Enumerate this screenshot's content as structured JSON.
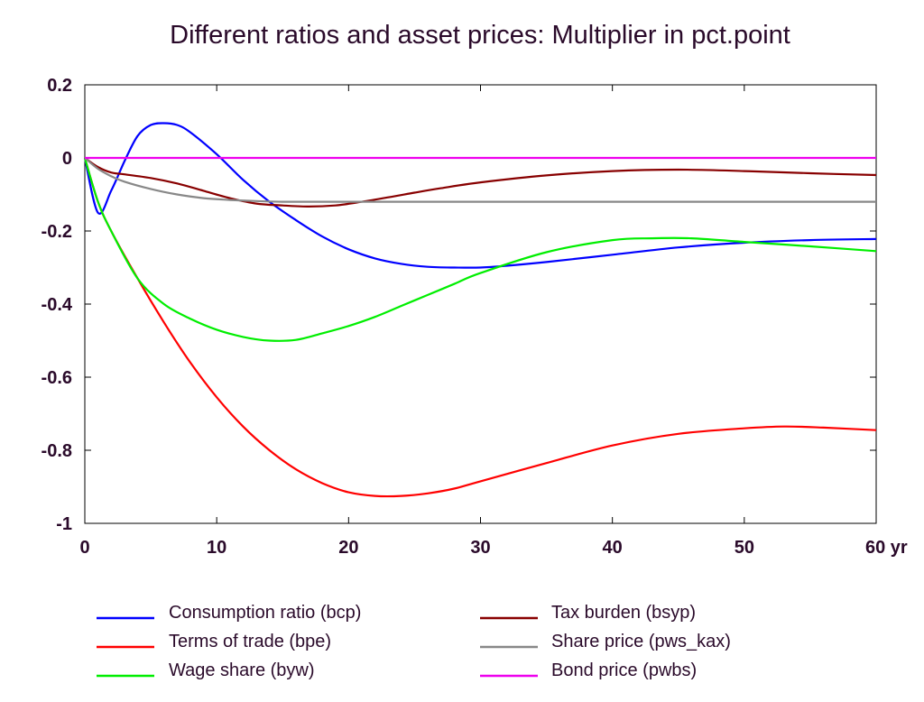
{
  "chart_data": {
    "type": "line",
    "title": "Different ratios and asset prices: Multiplier in pct.point",
    "xlabel": "",
    "ylabel": "",
    "x_unit": "yr",
    "xlim": [
      0,
      60
    ],
    "ylim": [
      -1,
      0.2
    ],
    "xticks": [
      0,
      10,
      20,
      30,
      40,
      50,
      60
    ],
    "xtick_labels": [
      "0",
      "10",
      "20",
      "30",
      "40",
      "50",
      "60 yr"
    ],
    "yticks": [
      0.2,
      0,
      -0.2,
      -0.4,
      -0.6,
      -0.8,
      -1
    ],
    "ytick_labels": [
      "0.2",
      "0",
      "-0.2",
      "-0.4",
      "-0.6",
      "-0.8",
      "-1"
    ],
    "grid": false,
    "legend_position": "bottom",
    "series": [
      {
        "name": "Consumption ratio (bcp)",
        "color": "#0000ff",
        "x": [
          0,
          1,
          2,
          3,
          4,
          5,
          6,
          7,
          8,
          10,
          12,
          14,
          16,
          18,
          20,
          22,
          24,
          26,
          28,
          30,
          32,
          35,
          40,
          45,
          50,
          55,
          60
        ],
        "values": [
          0,
          -0.15,
          -0.09,
          -0.01,
          0.06,
          0.09,
          0.095,
          0.09,
          0.07,
          0.01,
          -0.06,
          -0.12,
          -0.17,
          -0.215,
          -0.25,
          -0.275,
          -0.29,
          -0.298,
          -0.3,
          -0.3,
          -0.295,
          -0.285,
          -0.265,
          -0.245,
          -0.232,
          -0.225,
          -0.222
        ]
      },
      {
        "name": "Terms of trade (bpe)",
        "color": "#ff0000",
        "x": [
          0,
          1,
          2,
          4,
          6,
          8,
          10,
          12,
          14,
          16,
          18,
          20,
          22,
          24,
          26,
          28,
          30,
          35,
          40,
          45,
          50,
          53,
          56,
          60
        ],
        "values": [
          0,
          -0.12,
          -0.2,
          -0.33,
          -0.45,
          -0.56,
          -0.655,
          -0.735,
          -0.8,
          -0.852,
          -0.89,
          -0.915,
          -0.925,
          -0.925,
          -0.918,
          -0.905,
          -0.885,
          -0.835,
          -0.787,
          -0.755,
          -0.74,
          -0.735,
          -0.738,
          -0.745
        ]
      },
      {
        "name": "Wage share (byw)",
        "color": "#00ee00",
        "x": [
          0,
          1,
          2,
          4,
          6,
          8,
          10,
          12,
          14,
          16,
          18,
          20,
          22,
          24,
          26,
          28,
          30,
          35,
          40,
          43,
          46,
          50,
          55,
          60
        ],
        "values": [
          0,
          -0.12,
          -0.2,
          -0.33,
          -0.4,
          -0.44,
          -0.47,
          -0.49,
          -0.5,
          -0.498,
          -0.48,
          -0.46,
          -0.435,
          -0.405,
          -0.375,
          -0.345,
          -0.315,
          -0.258,
          -0.225,
          -0.22,
          -0.22,
          -0.23,
          -0.242,
          -0.255
        ]
      },
      {
        "name": "Tax burden (bsyp)",
        "color": "#880000",
        "x": [
          0,
          1,
          2,
          3,
          5,
          7,
          9,
          11,
          13,
          15,
          17,
          19,
          21,
          23,
          25,
          27,
          30,
          35,
          40,
          45,
          50,
          55,
          60
        ],
        "values": [
          0,
          -0.025,
          -0.04,
          -0.045,
          -0.055,
          -0.07,
          -0.09,
          -0.11,
          -0.125,
          -0.13,
          -0.133,
          -0.13,
          -0.12,
          -0.108,
          -0.095,
          -0.083,
          -0.067,
          -0.048,
          -0.036,
          -0.032,
          -0.036,
          -0.042,
          -0.047
        ]
      },
      {
        "name": "Share price (pws_kax)",
        "color": "#888888",
        "x": [
          0,
          1,
          2,
          3,
          5,
          7,
          9,
          11,
          13,
          15,
          17,
          20,
          25,
          30,
          40,
          50,
          60
        ],
        "values": [
          0,
          -0.03,
          -0.05,
          -0.065,
          -0.085,
          -0.1,
          -0.11,
          -0.115,
          -0.118,
          -0.12,
          -0.12,
          -0.12,
          -0.12,
          -0.12,
          -0.12,
          -0.12,
          -0.12
        ]
      },
      {
        "name": "Bond price (pwbs)",
        "color": "#ee00ee",
        "x": [
          0,
          60
        ],
        "values": [
          0,
          0
        ]
      }
    ]
  }
}
